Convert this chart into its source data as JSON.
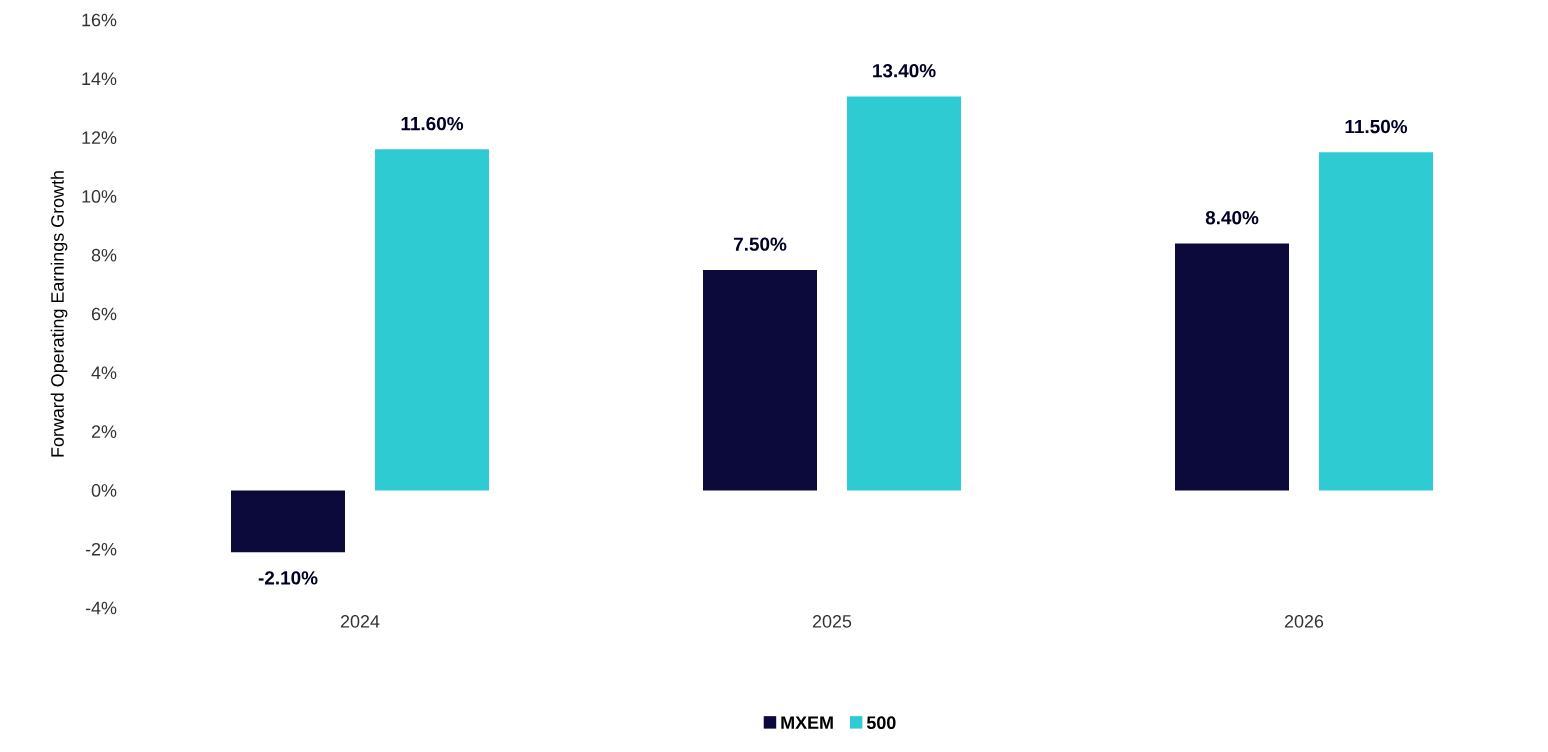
{
  "chart_data": {
    "type": "bar",
    "ylabel": "Forward Operating Earnings Growth",
    "categories": [
      "2024",
      "2025",
      "2026"
    ],
    "series": [
      {
        "name": "MXEM",
        "color": "#0b0a3a",
        "values": [
          -2.1,
          7.5,
          8.4
        ],
        "value_labels": [
          "-2.10%",
          "7.50%",
          "8.40%"
        ]
      },
      {
        "name": "500",
        "color": "#2ecbd3",
        "values": [
          11.6,
          13.4,
          11.5
        ],
        "value_labels": [
          "11.60%",
          "13.40%",
          "11.50%"
        ]
      }
    ],
    "ylim": [
      -4,
      16
    ],
    "yticks": [
      {
        "value": -4,
        "label": "-4%"
      },
      {
        "value": -2,
        "label": "-2%"
      },
      {
        "value": 0,
        "label": "0%"
      },
      {
        "value": 2,
        "label": "2%"
      },
      {
        "value": 4,
        "label": "4%"
      },
      {
        "value": 6,
        "label": "6%"
      },
      {
        "value": 8,
        "label": "8%"
      },
      {
        "value": 10,
        "label": "10%"
      },
      {
        "value": 12,
        "label": "12%"
      },
      {
        "value": 14,
        "label": "14%"
      },
      {
        "value": 16,
        "label": "16%"
      }
    ],
    "grid": false,
    "legend": "bottom"
  }
}
